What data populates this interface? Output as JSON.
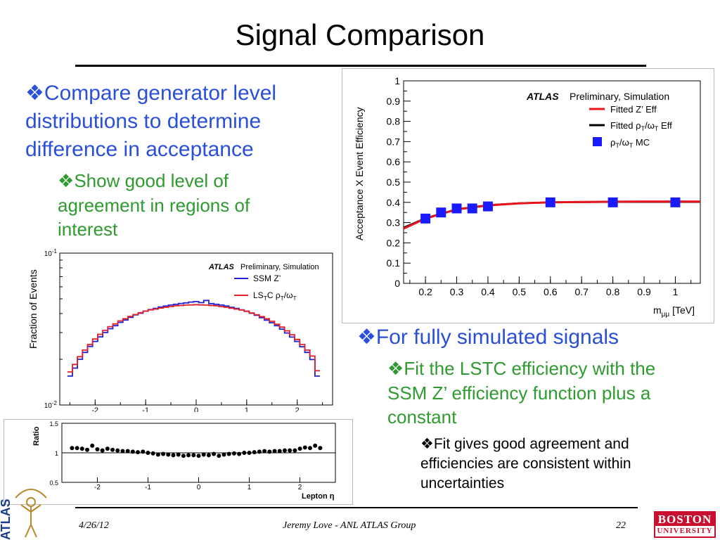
{
  "slide": {
    "title": "Signal Comparison",
    "bullet_symbol": "❖",
    "bullets": {
      "b1": "Compare generator level distributions to determine difference in acceptance",
      "b1_sub": "Show good level of agreement in regions of interest",
      "b2": "For fully simulated signals",
      "b2_sub": "Fit the LSTC efficiency with the SSM Z’ efficiency function plus a constant",
      "b2_sub_sub": "Fit gives good agreement and efficiencies are consistent within uncertainties"
    },
    "footer": {
      "date": "4/26/12",
      "author": "Jeremy Love - ANL ATLAS Group",
      "page": "22"
    },
    "logos": {
      "bu_line1": "BOSTON",
      "bu_line2": "UNIVERSITY",
      "atlas_side": "ATLAS"
    },
    "colors": {
      "bullet1": "#2a4fd8",
      "bullet2": "#2f9a2f",
      "bu_red": "#c8102e"
    }
  },
  "chart_data": [
    {
      "type": "line",
      "id": "acceptance_efficiency",
      "atlas_label": "ATLAS",
      "label_text": "Preliminary, Simulation",
      "ylabel": "Acceptance X Event Efficiency",
      "xlabel": "m",
      "xlabel_sub": "μμ",
      "xlabel_unit": " [TeV]",
      "xlim": [
        0.13,
        1.08
      ],
      "ylim": [
        0,
        1
      ],
      "x_ticks": [
        "0.2",
        "0.3",
        "0.4",
        "0.5",
        "0.6",
        "0.7",
        "0.8",
        "0.9",
        "1"
      ],
      "y_ticks": [
        "0",
        "0.1",
        "0.2",
        "0.3",
        "0.4",
        "0.5",
        "0.6",
        "0.7",
        "0.8",
        "0.9",
        "1"
      ],
      "legend": [
        {
          "label": "Fitted Z’ Eff",
          "color": "#e8141c",
          "kind": "line"
        },
        {
          "label": "Fitted ρT/ωT Eff",
          "color": "#000000",
          "kind": "line"
        },
        {
          "label": "ρT/ωT MC",
          "color": "#1a1aff",
          "kind": "marker"
        }
      ],
      "series": [
        {
          "name": "ρT/ωT MC",
          "x": [
            0.2,
            0.25,
            0.3,
            0.35,
            0.4,
            0.6,
            0.8,
            1.0
          ],
          "y": [
            0.32,
            0.35,
            0.37,
            0.37,
            0.38,
            0.4,
            0.4,
            0.4
          ]
        },
        {
          "name": "Fitted Z’ Eff",
          "x": [
            0.13,
            0.2,
            0.3,
            0.4,
            0.5,
            0.6,
            0.7,
            0.8,
            0.9,
            1.0,
            1.08
          ],
          "y": [
            0.27,
            0.32,
            0.365,
            0.385,
            0.395,
            0.4,
            0.402,
            0.403,
            0.404,
            0.404,
            0.404
          ]
        },
        {
          "name": "Fitted ρT/ωT Eff",
          "x": [
            0.13,
            0.2,
            0.3,
            0.4,
            0.5,
            0.6,
            0.7,
            0.8,
            0.9,
            1.0,
            1.08
          ],
          "y": [
            0.275,
            0.322,
            0.366,
            0.386,
            0.396,
            0.4,
            0.401,
            0.402,
            0.402,
            0.402,
            0.402
          ]
        }
      ]
    },
    {
      "type": "line",
      "id": "lepton_eta_fraction",
      "atlas_label": "ATLAS",
      "label_text": "Preliminary, Simulation",
      "ylabel": "Fraction of Events",
      "y_scale": "log",
      "ylim": [
        0.01,
        0.1
      ],
      "xlim": [
        -2.7,
        2.7
      ],
      "x_ticks": [
        "-2",
        "-1",
        "0",
        "1",
        "2"
      ],
      "y_ticks": [
        {
          "base": "10",
          "exp": "-1"
        },
        {
          "base": "10",
          "exp": "-2"
        }
      ],
      "legend": [
        {
          "label": "SSM Z’",
          "color": "#2020d0"
        },
        {
          "label": "LSTC ρT/ωT",
          "color": "#e0202a"
        }
      ],
      "x": [
        -2.5,
        -2.4,
        -2.3,
        -2.2,
        -2.1,
        -2.0,
        -1.9,
        -1.8,
        -1.7,
        -1.6,
        -1.5,
        -1.4,
        -1.3,
        -1.2,
        -1.1,
        -1.0,
        -0.9,
        -0.8,
        -0.7,
        -0.6,
        -0.5,
        -0.4,
        -0.3,
        -0.2,
        -0.1,
        0.0,
        0.1,
        0.2,
        0.3,
        0.4,
        0.5,
        0.6,
        0.7,
        0.8,
        0.9,
        1.0,
        1.1,
        1.2,
        1.3,
        1.4,
        1.5,
        1.6,
        1.7,
        1.8,
        1.9,
        2.0,
        2.1,
        2.2,
        2.3,
        2.4
      ],
      "series": [
        {
          "name": "SSM Z’",
          "values": [
            0.0155,
            0.0175,
            0.02,
            0.0222,
            0.0243,
            0.0262,
            0.0281,
            0.03,
            0.0318,
            0.0333,
            0.035,
            0.0363,
            0.0378,
            0.0392,
            0.0402,
            0.0415,
            0.0425,
            0.0432,
            0.0442,
            0.0448,
            0.0455,
            0.046,
            0.0466,
            0.047,
            0.0476,
            0.048,
            0.0472,
            0.0488,
            0.0465,
            0.046,
            0.0455,
            0.0448,
            0.044,
            0.0432,
            0.0423,
            0.0414,
            0.0402,
            0.039,
            0.0376,
            0.0362,
            0.0348,
            0.0333,
            0.0316,
            0.0298,
            0.028,
            0.0262,
            0.0242,
            0.0222,
            0.0199,
            0.0155
          ]
        },
        {
          "name": "LSTC ρT/ωT",
          "values": [
            0.0165,
            0.0185,
            0.0208,
            0.023,
            0.025,
            0.0272,
            0.0292,
            0.031,
            0.0328,
            0.0342,
            0.0358,
            0.037,
            0.0383,
            0.0394,
            0.0405,
            0.0415,
            0.0423,
            0.0428,
            0.0435,
            0.044,
            0.0445,
            0.045,
            0.0452,
            0.0455,
            0.0456,
            0.0458,
            0.0456,
            0.0455,
            0.0452,
            0.045,
            0.0445,
            0.044,
            0.0434,
            0.0428,
            0.0422,
            0.0414,
            0.0404,
            0.0393,
            0.0382,
            0.037,
            0.0356,
            0.034,
            0.0326,
            0.0308,
            0.029,
            0.027,
            0.025,
            0.023,
            0.021,
            0.0168
          ]
        }
      ]
    },
    {
      "type": "scatter",
      "id": "ratio_panel",
      "ylabel": "Ratio",
      "xlabel": "Lepton η",
      "ylim": [
        0.5,
        1.5
      ],
      "xlim": [
        -2.7,
        2.7
      ],
      "x_ticks": [
        "-2",
        "-1",
        "0",
        "1",
        "2"
      ],
      "y_ticks": [
        "1.5",
        "1",
        "0.5"
      ],
      "x": [
        -2.5,
        -2.4,
        -2.3,
        -2.2,
        -2.1,
        -2.0,
        -1.9,
        -1.8,
        -1.7,
        -1.6,
        -1.5,
        -1.4,
        -1.3,
        -1.2,
        -1.1,
        -1.0,
        -0.9,
        -0.8,
        -0.7,
        -0.6,
        -0.5,
        -0.4,
        -0.3,
        -0.2,
        -0.1,
        0.0,
        0.1,
        0.2,
        0.3,
        0.4,
        0.5,
        0.6,
        0.7,
        0.8,
        0.9,
        1.0,
        1.1,
        1.2,
        1.3,
        1.4,
        1.5,
        1.6,
        1.7,
        1.8,
        1.9,
        2.0,
        2.1,
        2.2,
        2.3,
        2.4
      ],
      "values": [
        1.08,
        1.08,
        1.07,
        1.05,
        1.12,
        1.06,
        1.04,
        1.07,
        1.05,
        1.04,
        1.03,
        1.03,
        1.02,
        1.01,
        1.02,
        1.0,
        0.99,
        0.97,
        0.98,
        0.97,
        0.96,
        0.97,
        0.95,
        0.96,
        0.96,
        0.95,
        0.97,
        0.96,
        0.98,
        0.95,
        0.97,
        0.98,
        0.99,
        0.98,
        1.0,
        1.0,
        1.01,
        1.02,
        1.03,
        1.02,
        1.03,
        1.03,
        1.04,
        1.04,
        1.04,
        1.07,
        1.09,
        1.08,
        1.12,
        1.08
      ]
    }
  ]
}
